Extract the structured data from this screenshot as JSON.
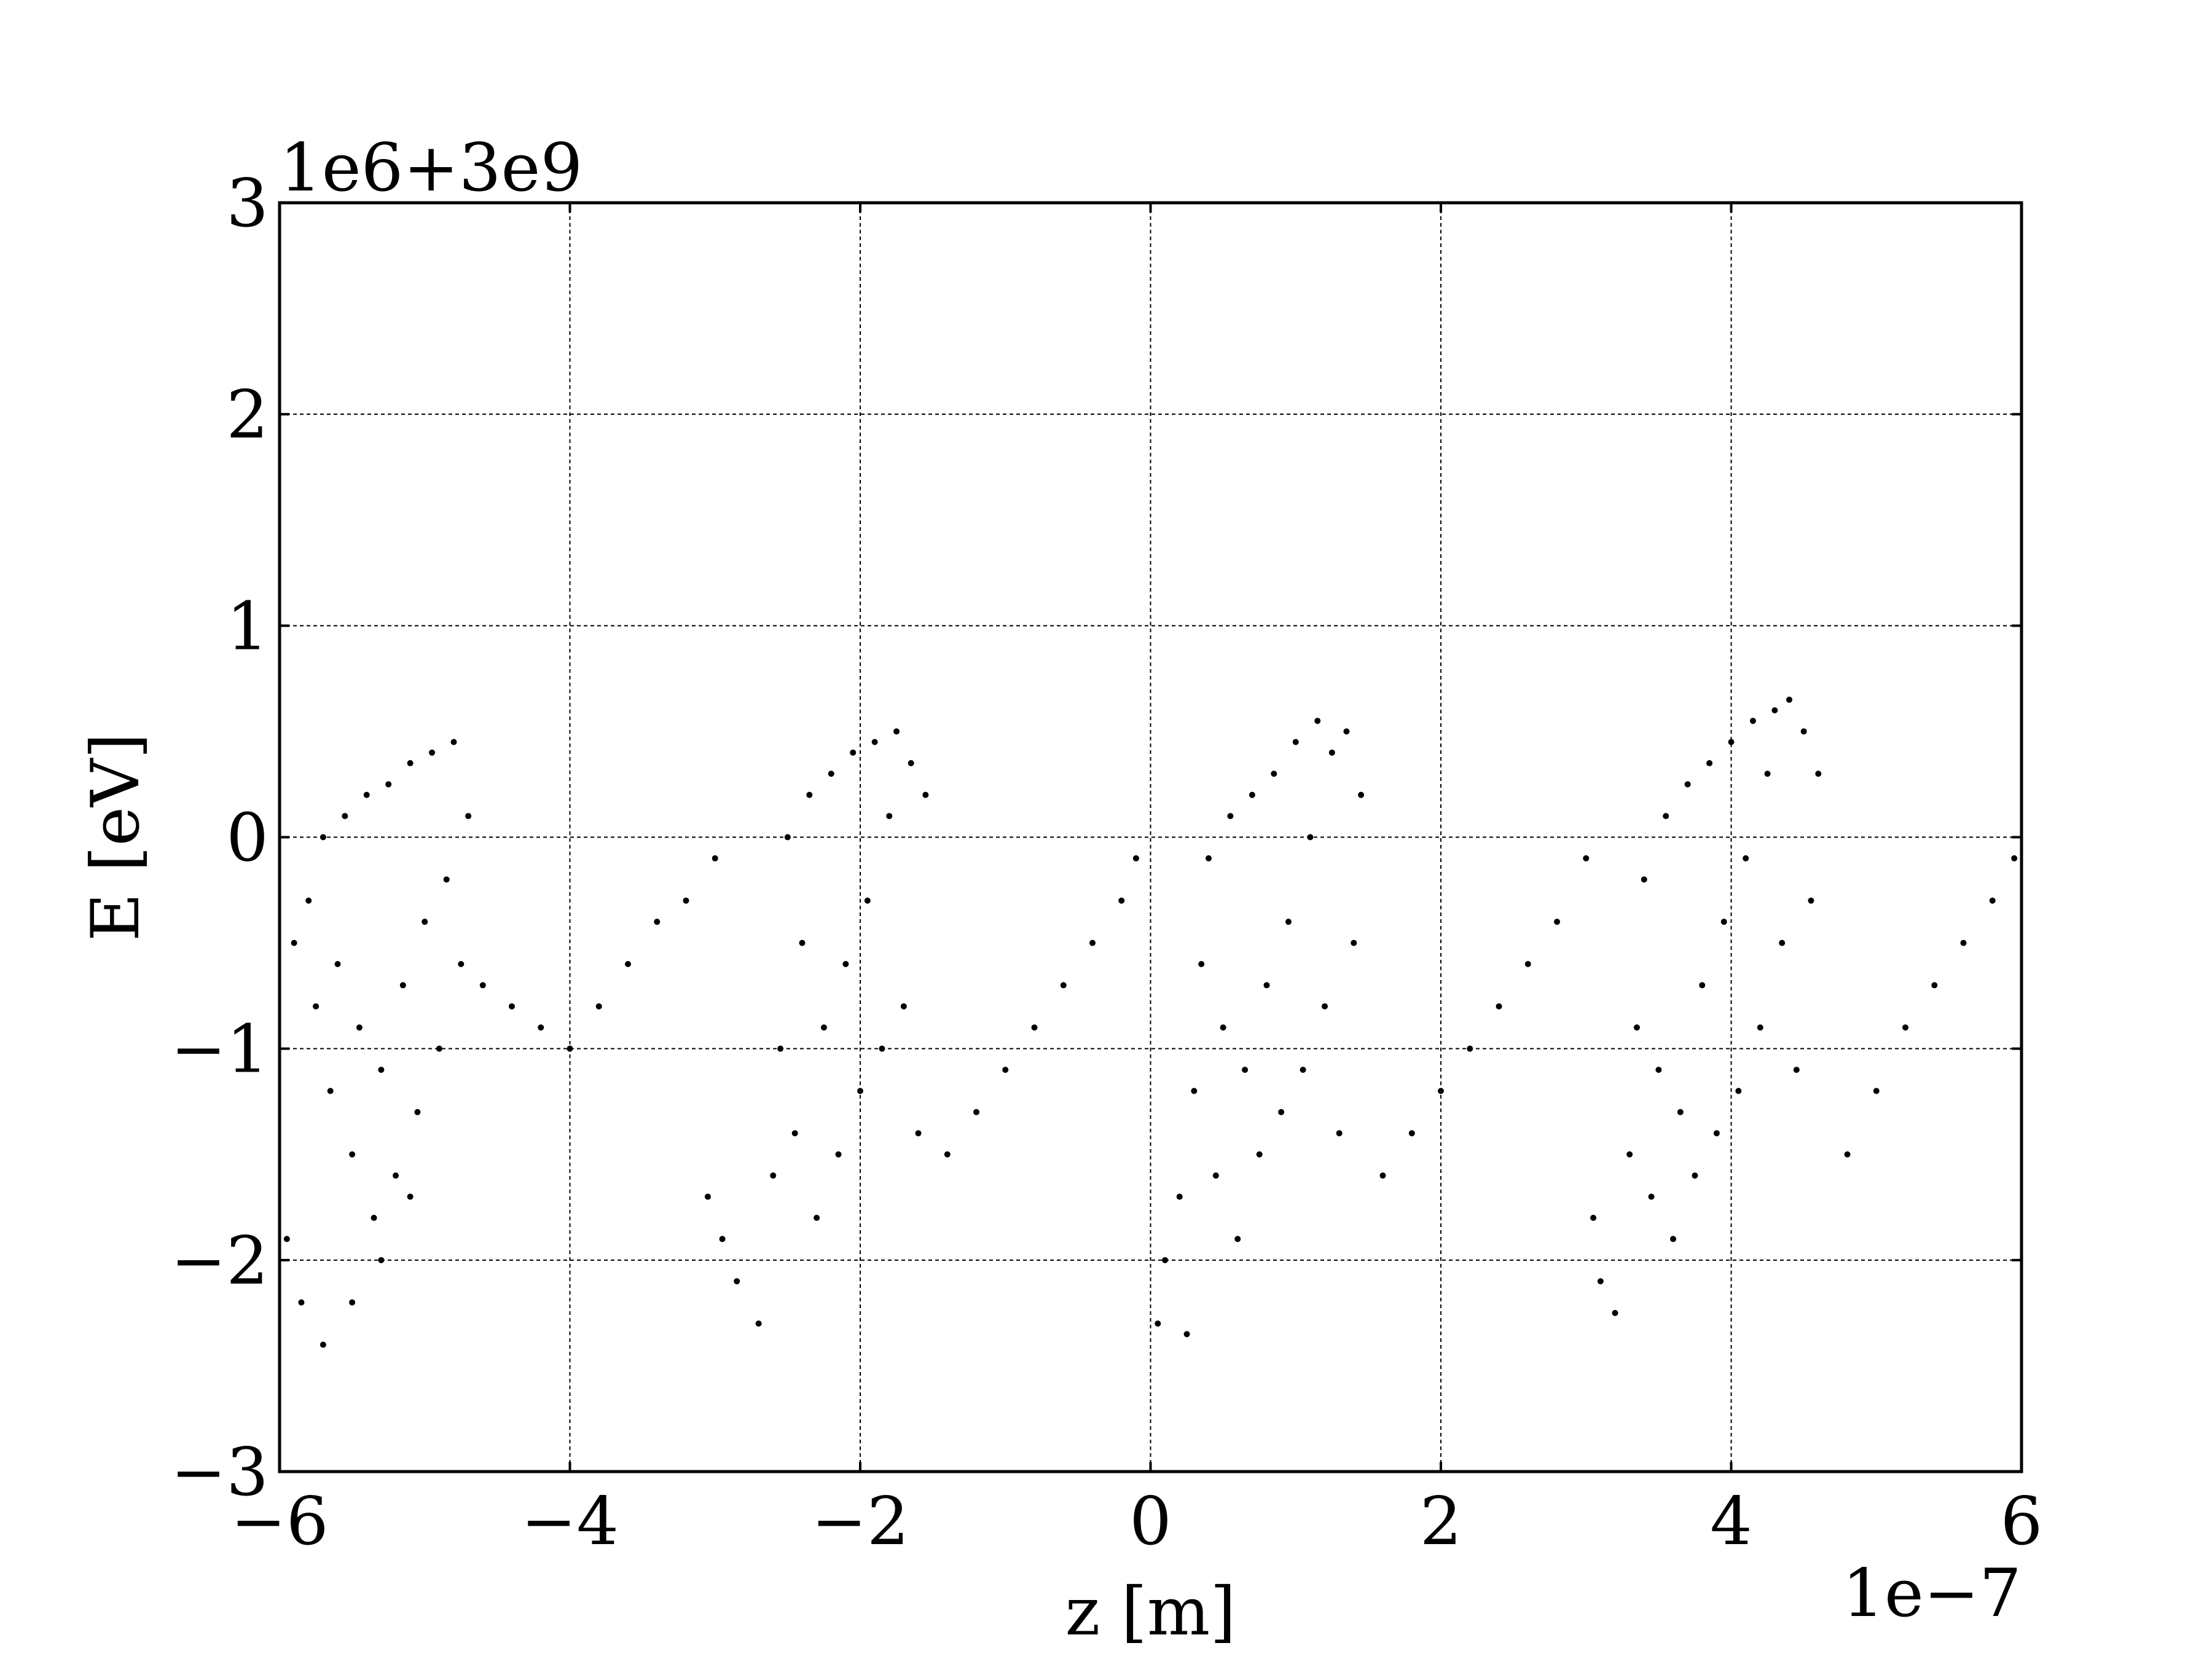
{
  "chart_data": {
    "type": "scatter",
    "title": "",
    "xlabel": "z [m]",
    "ylabel": "E [eV]",
    "x_offset_text": "1e−7",
    "y_offset_text": "1e6+3e9",
    "xlim": [
      -6,
      6
    ],
    "ylim": [
      -3,
      3
    ],
    "x_ticks": [
      -6,
      -4,
      -2,
      0,
      2,
      4,
      6
    ],
    "y_ticks": [
      -3,
      -2,
      -1,
      0,
      1,
      2,
      3
    ],
    "x_tick_labels": [
      "−6",
      "−4",
      "−2",
      "0",
      "2",
      "4",
      "6"
    ],
    "y_tick_labels": [
      "−3",
      "−2",
      "−1",
      "0",
      "1",
      "2",
      "3"
    ],
    "grid": true,
    "point_color": "#000000",
    "series": [
      {
        "points": [
          [
            -5.9,
            -0.5
          ],
          [
            -5.8,
            -0.3
          ],
          [
            -5.75,
            -0.8
          ],
          [
            -5.7,
            0.0
          ],
          [
            -5.65,
            -1.2
          ],
          [
            -5.6,
            -0.6
          ],
          [
            -5.55,
            0.1
          ],
          [
            -5.5,
            -1.5
          ],
          [
            -5.45,
            -0.9
          ],
          [
            -5.4,
            0.2
          ],
          [
            -5.35,
            -1.8
          ],
          [
            -5.3,
            -1.1
          ],
          [
            -5.25,
            0.25
          ],
          [
            -5.2,
            -1.6
          ],
          [
            -5.15,
            -0.7
          ],
          [
            -5.1,
            0.35
          ],
          [
            -5.05,
            -1.3
          ],
          [
            -5.0,
            -0.4
          ],
          [
            -4.95,
            0.4
          ],
          [
            -4.9,
            -1.0
          ],
          [
            -4.85,
            -0.2
          ],
          [
            -4.8,
            0.45
          ],
          [
            -4.75,
            -0.6
          ],
          [
            -4.7,
            0.1
          ],
          [
            -5.95,
            -1.9
          ],
          [
            -5.85,
            -2.2
          ],
          [
            -5.7,
            -2.4
          ],
          [
            -5.5,
            -2.2
          ],
          [
            -5.3,
            -2.0
          ],
          [
            -5.1,
            -1.7
          ],
          [
            -4.6,
            -0.7
          ],
          [
            -4.4,
            -0.8
          ],
          [
            -4.2,
            -0.9
          ],
          [
            -4.0,
            -1.0
          ],
          [
            -3.8,
            -0.8
          ],
          [
            -3.6,
            -0.6
          ],
          [
            -3.4,
            -0.4
          ],
          [
            -3.2,
            -0.3
          ],
          [
            -3.0,
            -0.1
          ],
          [
            -3.05,
            -1.7
          ],
          [
            -2.95,
            -1.9
          ],
          [
            -2.85,
            -2.1
          ],
          [
            -2.7,
            -2.3
          ],
          [
            -2.6,
            -1.6
          ],
          [
            -2.55,
            -1.0
          ],
          [
            -2.5,
            0.0
          ],
          [
            -2.45,
            -1.4
          ],
          [
            -2.4,
            -0.5
          ],
          [
            -2.35,
            0.2
          ],
          [
            -2.3,
            -1.8
          ],
          [
            -2.25,
            -0.9
          ],
          [
            -2.2,
            0.3
          ],
          [
            -2.15,
            -1.5
          ],
          [
            -2.1,
            -0.6
          ],
          [
            -2.05,
            0.4
          ],
          [
            -2.0,
            -1.2
          ],
          [
            -1.95,
            -0.3
          ],
          [
            -1.9,
            0.45
          ],
          [
            -1.85,
            -1.0
          ],
          [
            -1.8,
            0.1
          ],
          [
            -1.75,
            0.5
          ],
          [
            -1.7,
            -0.8
          ],
          [
            -1.65,
            0.35
          ],
          [
            -1.6,
            -1.4
          ],
          [
            -1.55,
            0.2
          ],
          [
            -1.4,
            -1.5
          ],
          [
            -1.2,
            -1.3
          ],
          [
            -1.0,
            -1.1
          ],
          [
            -0.8,
            -0.9
          ],
          [
            -0.6,
            -0.7
          ],
          [
            -0.4,
            -0.5
          ],
          [
            -0.2,
            -0.3
          ],
          [
            -0.1,
            -0.1
          ],
          [
            0.05,
            -2.3
          ],
          [
            0.1,
            -2.0
          ],
          [
            0.2,
            -1.7
          ],
          [
            0.25,
            -2.35
          ],
          [
            0.3,
            -1.2
          ],
          [
            0.35,
            -0.6
          ],
          [
            0.4,
            -0.1
          ],
          [
            0.45,
            -1.6
          ],
          [
            0.5,
            -0.9
          ],
          [
            0.55,
            0.1
          ],
          [
            0.6,
            -1.9
          ],
          [
            0.65,
            -1.1
          ],
          [
            0.7,
            0.2
          ],
          [
            0.75,
            -1.5
          ],
          [
            0.8,
            -0.7
          ],
          [
            0.85,
            0.3
          ],
          [
            0.9,
            -1.3
          ],
          [
            0.95,
            -0.4
          ],
          [
            1.0,
            0.45
          ],
          [
            1.05,
            -1.1
          ],
          [
            1.1,
            0.0
          ],
          [
            1.15,
            0.55
          ],
          [
            1.2,
            -0.8
          ],
          [
            1.25,
            0.4
          ],
          [
            1.3,
            -1.4
          ],
          [
            1.35,
            0.5
          ],
          [
            1.4,
            -0.5
          ],
          [
            1.45,
            0.2
          ],
          [
            1.6,
            -1.6
          ],
          [
            1.8,
            -1.4
          ],
          [
            2.0,
            -1.2
          ],
          [
            2.2,
            -1.0
          ],
          [
            2.4,
            -0.8
          ],
          [
            2.6,
            -0.6
          ],
          [
            2.8,
            -0.4
          ],
          [
            3.0,
            -0.1
          ],
          [
            3.05,
            -1.8
          ],
          [
            3.1,
            -2.1
          ],
          [
            3.2,
            -2.25
          ],
          [
            3.3,
            -1.5
          ],
          [
            3.35,
            -0.9
          ],
          [
            3.4,
            -0.2
          ],
          [
            3.45,
            -1.7
          ],
          [
            3.5,
            -1.1
          ],
          [
            3.55,
            0.1
          ],
          [
            3.6,
            -1.9
          ],
          [
            3.65,
            -1.3
          ],
          [
            3.7,
            0.25
          ],
          [
            3.75,
            -1.6
          ],
          [
            3.8,
            -0.7
          ],
          [
            3.85,
            0.35
          ],
          [
            3.9,
            -1.4
          ],
          [
            3.95,
            -0.4
          ],
          [
            4.0,
            0.45
          ],
          [
            4.05,
            -1.2
          ],
          [
            4.1,
            -0.1
          ],
          [
            4.15,
            0.55
          ],
          [
            4.2,
            -0.9
          ],
          [
            4.25,
            0.3
          ],
          [
            4.3,
            0.6
          ],
          [
            4.35,
            -0.5
          ],
          [
            4.4,
            0.65
          ],
          [
            4.45,
            -1.1
          ],
          [
            4.5,
            0.5
          ],
          [
            4.55,
            -0.3
          ],
          [
            4.6,
            0.3
          ],
          [
            4.8,
            -1.5
          ],
          [
            5.0,
            -1.2
          ],
          [
            5.2,
            -0.9
          ],
          [
            5.4,
            -0.7
          ],
          [
            5.6,
            -0.5
          ],
          [
            5.8,
            -0.3
          ],
          [
            5.95,
            -0.1
          ]
        ]
      }
    ]
  }
}
